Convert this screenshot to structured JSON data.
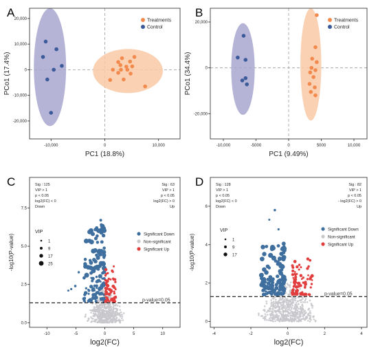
{
  "colors": {
    "treatments": "#f28a4e",
    "treatments_ellipse": "#f9c9a4",
    "control": "#3b5a99",
    "control_ellipse": "#a8a6cf",
    "sig_down": "#3f6f9e",
    "non_sig": "#c8c8cc",
    "sig_up": "#e23d3d",
    "axis": "#222222",
    "ref_line": "#9a9a9a"
  },
  "chart_data": [
    {
      "panel": "A",
      "type": "scatter",
      "xlabel": "PC1 (18.8%)",
      "ylabel": "PCo1 (17.4%)",
      "xlim": [
        -14000,
        14000
      ],
      "ylim": [
        -27000,
        24000
      ],
      "x_ticks": [
        -10000,
        0,
        10000
      ],
      "x_tick_labels": [
        "-10,000",
        "0",
        "10,000"
      ],
      "y_ticks": [
        -20000,
        -10000,
        0,
        10000,
        20000
      ],
      "y_tick_labels": [
        "-20,000",
        "-10,000",
        "0",
        "10,000",
        "20,000"
      ],
      "legend": {
        "position": "top-right",
        "entries": [
          "Treatments",
          "Control"
        ]
      },
      "series": [
        {
          "name": "Treatments",
          "points": [
            [
              3200,
              4500
            ],
            [
              5500,
              5000
            ],
            [
              2500,
              3000
            ],
            [
              4700,
              3200
            ],
            [
              2900,
              1800
            ],
            [
              4000,
              1200
            ],
            [
              5100,
              1300
            ],
            [
              1500,
              0
            ],
            [
              3000,
              0
            ],
            [
              4200,
              0
            ],
            [
              2500,
              -1200
            ],
            [
              4800,
              -1500
            ],
            [
              1000,
              -4000
            ],
            [
              3500,
              -3800
            ],
            [
              7500,
              -6500
            ]
          ],
          "ellipse": {
            "cx": 4300,
            "cy": -500,
            "rx": 6500,
            "ry": 8600
          }
        },
        {
          "name": "Control",
          "points": [
            [
              -11000,
              11000
            ],
            [
              -9000,
              8000
            ],
            [
              -11500,
              5000
            ],
            [
              -8000,
              1500
            ],
            [
              -9500,
              0
            ],
            [
              -10700,
              -3800
            ],
            [
              -10000,
              -16800
            ]
          ],
          "ellipse": {
            "cx": -10200,
            "cy": 1000,
            "rx": 3000,
            "ry": 23000
          }
        }
      ]
    },
    {
      "panel": "B",
      "type": "scatter",
      "xlabel": "PC1 (9.49%)",
      "ylabel": "PCo1 (34.4%)",
      "xlim": [
        -12000,
        12000
      ],
      "ylim": [
        -31000,
        26000
      ],
      "x_ticks": [
        -10000,
        -5000,
        0,
        5000,
        10000
      ],
      "x_tick_labels": [
        "-10,000",
        "-5000",
        "0",
        "5000",
        "10,000"
      ],
      "y_ticks": [
        -20000,
        0,
        20000
      ],
      "y_tick_labels": [
        "-20,000",
        "0",
        "20,000"
      ],
      "legend": {
        "position": "top-right",
        "entries": [
          "Treatments",
          "Control"
        ]
      },
      "series": [
        {
          "name": "Treatments",
          "points": [
            [
              4300,
              23000
            ],
            [
              4100,
              9000
            ],
            [
              3600,
              4000
            ],
            [
              4300,
              2500
            ],
            [
              3500,
              0
            ],
            [
              4100,
              -1000
            ],
            [
              3300,
              -2000
            ],
            [
              3800,
              -4000
            ],
            [
              3200,
              -7000
            ],
            [
              4000,
              -8500
            ],
            [
              3400,
              -10500
            ],
            [
              4100,
              -12000
            ]
          ],
          "ellipse": {
            "cx": 3400,
            "cy": 1500,
            "rx": 1600,
            "ry": 24500
          }
        },
        {
          "name": "Control",
          "points": [
            [
              -6900,
              14000
            ],
            [
              -7800,
              4500
            ],
            [
              -6600,
              3500
            ],
            [
              -6600,
              -4500
            ],
            [
              -6400,
              -7200
            ],
            [
              -7100,
              -5500
            ]
          ],
          "ellipse": {
            "cx": -7000,
            "cy": -500,
            "rx": 1800,
            "ry": 20000
          }
        }
      ]
    },
    {
      "panel": "C",
      "type": "scatter",
      "xlabel": "log2(FC)",
      "ylabel": "-log10(P-value)",
      "xlim": [
        -13,
        13
      ],
      "ylim": [
        -0.3,
        9.5
      ],
      "x_ticks": [
        -10,
        -5,
        0,
        5,
        10
      ],
      "x_tick_labels": [
        "-10",
        "-5",
        "0",
        "5",
        "10"
      ],
      "y_ticks": [
        0,
        2.5,
        5,
        7.5
      ],
      "y_tick_labels": [
        "0.0",
        "2.5",
        "5.0",
        "7.5"
      ],
      "threshold_y": 1.3,
      "threshold_label": "p-value=0.05",
      "legend_entries": [
        "Significant Down",
        "Non-significant",
        "Significant Up"
      ],
      "vip_title": "VIP",
      "vip_values": [
        "1",
        "9",
        "17",
        "25"
      ],
      "annotation_left": [
        "Sig : 125",
        "VIP > 1",
        "p < 0.05",
        "log2(FC) < 0",
        "Down"
      ],
      "annotation_right": [
        "Sig : 63",
        "VIP > 1",
        "p < 0.05",
        "log2(FC) > 0",
        "Up"
      ]
    },
    {
      "panel": "D",
      "type": "scatter",
      "xlabel": "log2(FC)",
      "ylabel": "-log10(P-value)",
      "xlim": [
        -4.2,
        4.3
      ],
      "ylim": [
        -0.3,
        7.5
      ],
      "x_ticks": [
        -4,
        -2,
        0,
        2,
        4
      ],
      "x_tick_labels": [
        "-4",
        "-2",
        "0",
        "2",
        "4"
      ],
      "y_ticks": [
        0,
        2,
        4,
        6
      ],
      "y_tick_labels": [
        "0",
        "2",
        "4",
        "6"
      ],
      "threshold_y": 1.3,
      "threshold_label": "p-value=0.05",
      "legend_entries": [
        "Significant Down",
        "Non-significant",
        "Significant Up"
      ],
      "vip_title": "VIP",
      "vip_values": [
        "1",
        "9",
        "17"
      ],
      "annotation_left": [
        "Sig : 128",
        "VIP > 1",
        "p < 0.05",
        "log2(FC) < 0",
        "Down"
      ],
      "annotation_right": [
        "Sig : 82",
        "VIP > 1",
        "p < 0.05",
        "- log2(FC) > 0",
        "Up"
      ]
    }
  ]
}
